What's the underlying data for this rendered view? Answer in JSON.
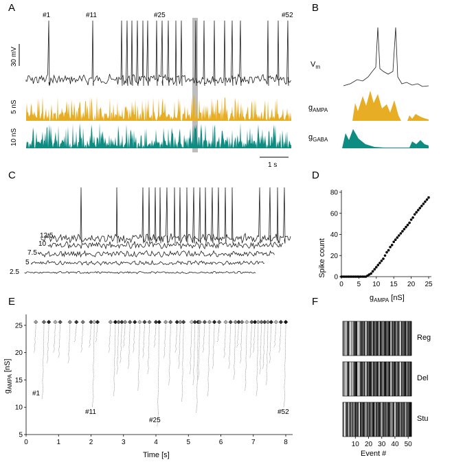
{
  "colors": {
    "trace": "#1a1a1a",
    "ampa": "#e6ad25",
    "gaba": "#0f8c82",
    "highlight": "#bdbdbd"
  },
  "panels": {
    "A": {
      "letter": "A",
      "event_labels": [
        "#1",
        "#11",
        "#25",
        "#52"
      ],
      "scale_vm": "30 mV",
      "scale_ampa": "5 nS",
      "scale_gaba": "10 nS",
      "scale_time": "1 s"
    },
    "B": {
      "letter": "B",
      "vm_label": "V",
      "vm_sub": "m",
      "ampa_label": "g",
      "ampa_sub": "AMPA",
      "gaba_label": "g",
      "gaba_sub": "GABA"
    },
    "C": {
      "letter": "C",
      "trace_labels": [
        "12.5",
        "10",
        "7.5",
        "5",
        "2.5"
      ]
    },
    "D": {
      "letter": "D",
      "ylabel": "Spike count",
      "xlabel_main": "g",
      "xlabel_sub": "AMPA",
      "xlabel_unit": " [nS]"
    },
    "E": {
      "letter": "E",
      "ylabel_main": "g",
      "ylabel_sub": "AMPA",
      "ylabel_unit": " [nS]",
      "xlabel": "Time [s]",
      "event_labels": [
        "#1",
        "#11",
        "#25",
        "#52"
      ]
    },
    "F": {
      "letter": "F",
      "rows": [
        "Reg",
        "Del",
        "Stu"
      ],
      "xlabel": "Event #"
    }
  },
  "chart_data": [
    {
      "panel": "D",
      "type": "scatter",
      "title": "",
      "xlabel": "gAMPA [nS]",
      "ylabel": "Spike count",
      "xlim": [
        0,
        25
      ],
      "ylim": [
        0,
        80
      ],
      "xticks": [
        "0",
        "5",
        "10",
        "15",
        "20",
        "25"
      ],
      "yticks": [
        "0",
        "20",
        "40",
        "60",
        "80"
      ],
      "x": [
        0,
        0.5,
        1,
        1.5,
        2,
        2.5,
        3,
        3.5,
        4,
        4.5,
        5,
        5.5,
        6,
        6.5,
        7,
        7.5,
        8,
        8.5,
        9,
        9.5,
        10,
        10.5,
        11,
        11.5,
        12,
        12.5,
        13,
        13.5,
        14,
        14.5,
        15,
        15.5,
        16,
        16.5,
        17,
        17.5,
        18,
        18.5,
        19,
        19.5,
        20,
        20.5,
        21,
        21.5,
        22,
        22.5,
        23,
        23.5,
        24,
        24.5,
        25
      ],
      "y": [
        0,
        0,
        0,
        0,
        0,
        0,
        0,
        0,
        0,
        0,
        0,
        0,
        0,
        0,
        0,
        1,
        2,
        3,
        5,
        7,
        9,
        11,
        13,
        15,
        17,
        20,
        23,
        25,
        28,
        30,
        33,
        35,
        37,
        39,
        41,
        43,
        45,
        47,
        49,
        51,
        54,
        56,
        59,
        61,
        63,
        65,
        67,
        69,
        71,
        73,
        75
      ]
    },
    {
      "panel": "E",
      "type": "line",
      "title": "",
      "xlabel": "Time [s]",
      "ylabel": "gAMPA [nS]",
      "xlim": [
        0,
        8
      ],
      "ylim": [
        5,
        27
      ],
      "xticks": [
        "0",
        "1",
        "2",
        "3",
        "4",
        "5",
        "6",
        "7",
        "8"
      ],
      "yticks": [
        "5",
        "10",
        "15",
        "20",
        "25"
      ],
      "event_times": [
        0.3,
        0.55,
        0.7,
        0.9,
        1.05,
        1.35,
        1.55,
        1.75,
        2.0,
        2.1,
        2.2,
        2.6,
        2.75,
        2.85,
        2.95,
        3.05,
        3.2,
        3.35,
        3.5,
        3.65,
        3.8,
        4.0,
        4.1,
        4.3,
        4.45,
        4.65,
        4.75,
        4.85,
        5.1,
        5.2,
        5.3,
        5.35,
        5.5,
        5.65,
        5.8,
        5.95,
        6.15,
        6.3,
        6.45,
        6.55,
        6.65,
        6.8,
        6.95,
        7.05,
        7.15,
        7.25,
        7.35,
        7.45,
        7.55,
        7.7,
        7.85,
        8.0
      ],
      "event_thresholds": [
        20,
        11.5,
        18,
        20,
        19,
        18,
        22,
        20,
        21,
        10,
        22,
        20,
        12,
        16,
        18,
        21,
        17,
        20,
        13,
        19,
        16,
        21,
        6.5,
        19,
        14,
        20,
        17,
        11,
        16,
        14,
        9,
        15,
        20,
        12,
        17,
        22,
        19,
        17,
        15,
        21,
        18,
        13,
        19,
        20,
        12,
        16,
        17,
        14,
        18,
        21,
        20,
        10
      ],
      "event_shades": [
        "#999",
        "#666",
        "#222",
        "#aaa",
        "#555",
        "#888",
        "#333",
        "#777",
        "#444",
        "#bbb",
        "#222",
        "#999",
        "#111",
        "#666",
        "#333",
        "#888",
        "#555",
        "#222",
        "#aaa",
        "#444",
        "#777",
        "#333",
        "#111",
        "#999",
        "#666",
        "#222",
        "#888",
        "#444",
        "#bbb",
        "#333",
        "#111",
        "#777",
        "#555",
        "#999",
        "#222",
        "#666",
        "#aaa",
        "#444",
        "#888",
        "#333",
        "#777",
        "#bbb",
        "#555",
        "#111",
        "#999",
        "#666",
        "#444",
        "#888",
        "#222",
        "#aaa",
        "#333",
        "#111"
      ]
    },
    {
      "panel": "F",
      "type": "heatmap",
      "title": "",
      "xlabel": "Event #",
      "rows": [
        "Reg",
        "Del",
        "Stu"
      ],
      "xlim": [
        1,
        52
      ],
      "xticks": [
        "10",
        "20",
        "30",
        "40",
        "50"
      ],
      "values": [
        [
          0.45,
          0.55,
          0.8,
          0.3,
          0.15,
          0.95,
          0.55,
          0.7,
          0.25,
          0.2,
          0.1,
          0.85,
          0.65,
          0.3,
          0.2,
          0.4,
          0.15,
          0.9,
          0.2,
          0.35,
          0.1,
          0.25,
          0.6,
          0.05,
          0.45,
          0.2,
          0.15,
          0.7,
          0.1,
          0.3,
          0.55,
          0.2,
          0.1,
          0.45,
          0.25,
          0.05,
          0.8,
          0.2,
          0.35,
          0.1,
          0.55,
          0.3,
          0.2,
          0.95,
          0.15,
          0.4,
          0.25,
          0.1,
          0.6,
          0.2,
          0.3,
          0.15
        ],
        [
          0.5,
          0.6,
          0.85,
          0.35,
          0.1,
          0.95,
          0.5,
          0.75,
          0.3,
          0.15,
          0.05,
          0.8,
          0.7,
          0.25,
          0.15,
          0.45,
          0.2,
          0.9,
          0.15,
          0.4,
          0.05,
          0.2,
          0.65,
          0.1,
          0.4,
          0.25,
          0.1,
          0.75,
          0.15,
          0.25,
          0.6,
          0.15,
          0.05,
          0.5,
          0.3,
          0.1,
          0.85,
          0.25,
          0.3,
          0.05,
          0.5,
          0.35,
          0.15,
          0.98,
          0.2,
          0.45,
          0.2,
          0.05,
          0.55,
          0.25,
          0.35,
          0.1
        ],
        [
          0.4,
          0.95,
          0.3,
          0.2,
          0.75,
          0.15,
          0.55,
          0.25,
          0.6,
          0.1,
          0.35,
          0.2,
          0.85,
          0.15,
          0.4,
          0.1,
          0.3,
          0.7,
          0.2,
          0.45,
          0.15,
          0.55,
          0.25,
          0.05,
          0.65,
          0.2,
          0.4,
          0.1,
          0.3,
          0.75,
          0.15,
          0.35,
          0.25,
          0.5,
          0.1,
          0.2,
          0.6,
          0.45,
          0.15,
          0.85,
          0.25,
          0.3,
          0.1,
          0.55,
          0.2,
          0.4,
          0.15,
          0.7,
          0.25,
          0.35,
          0.1,
          0.05
        ]
      ]
    }
  ]
}
